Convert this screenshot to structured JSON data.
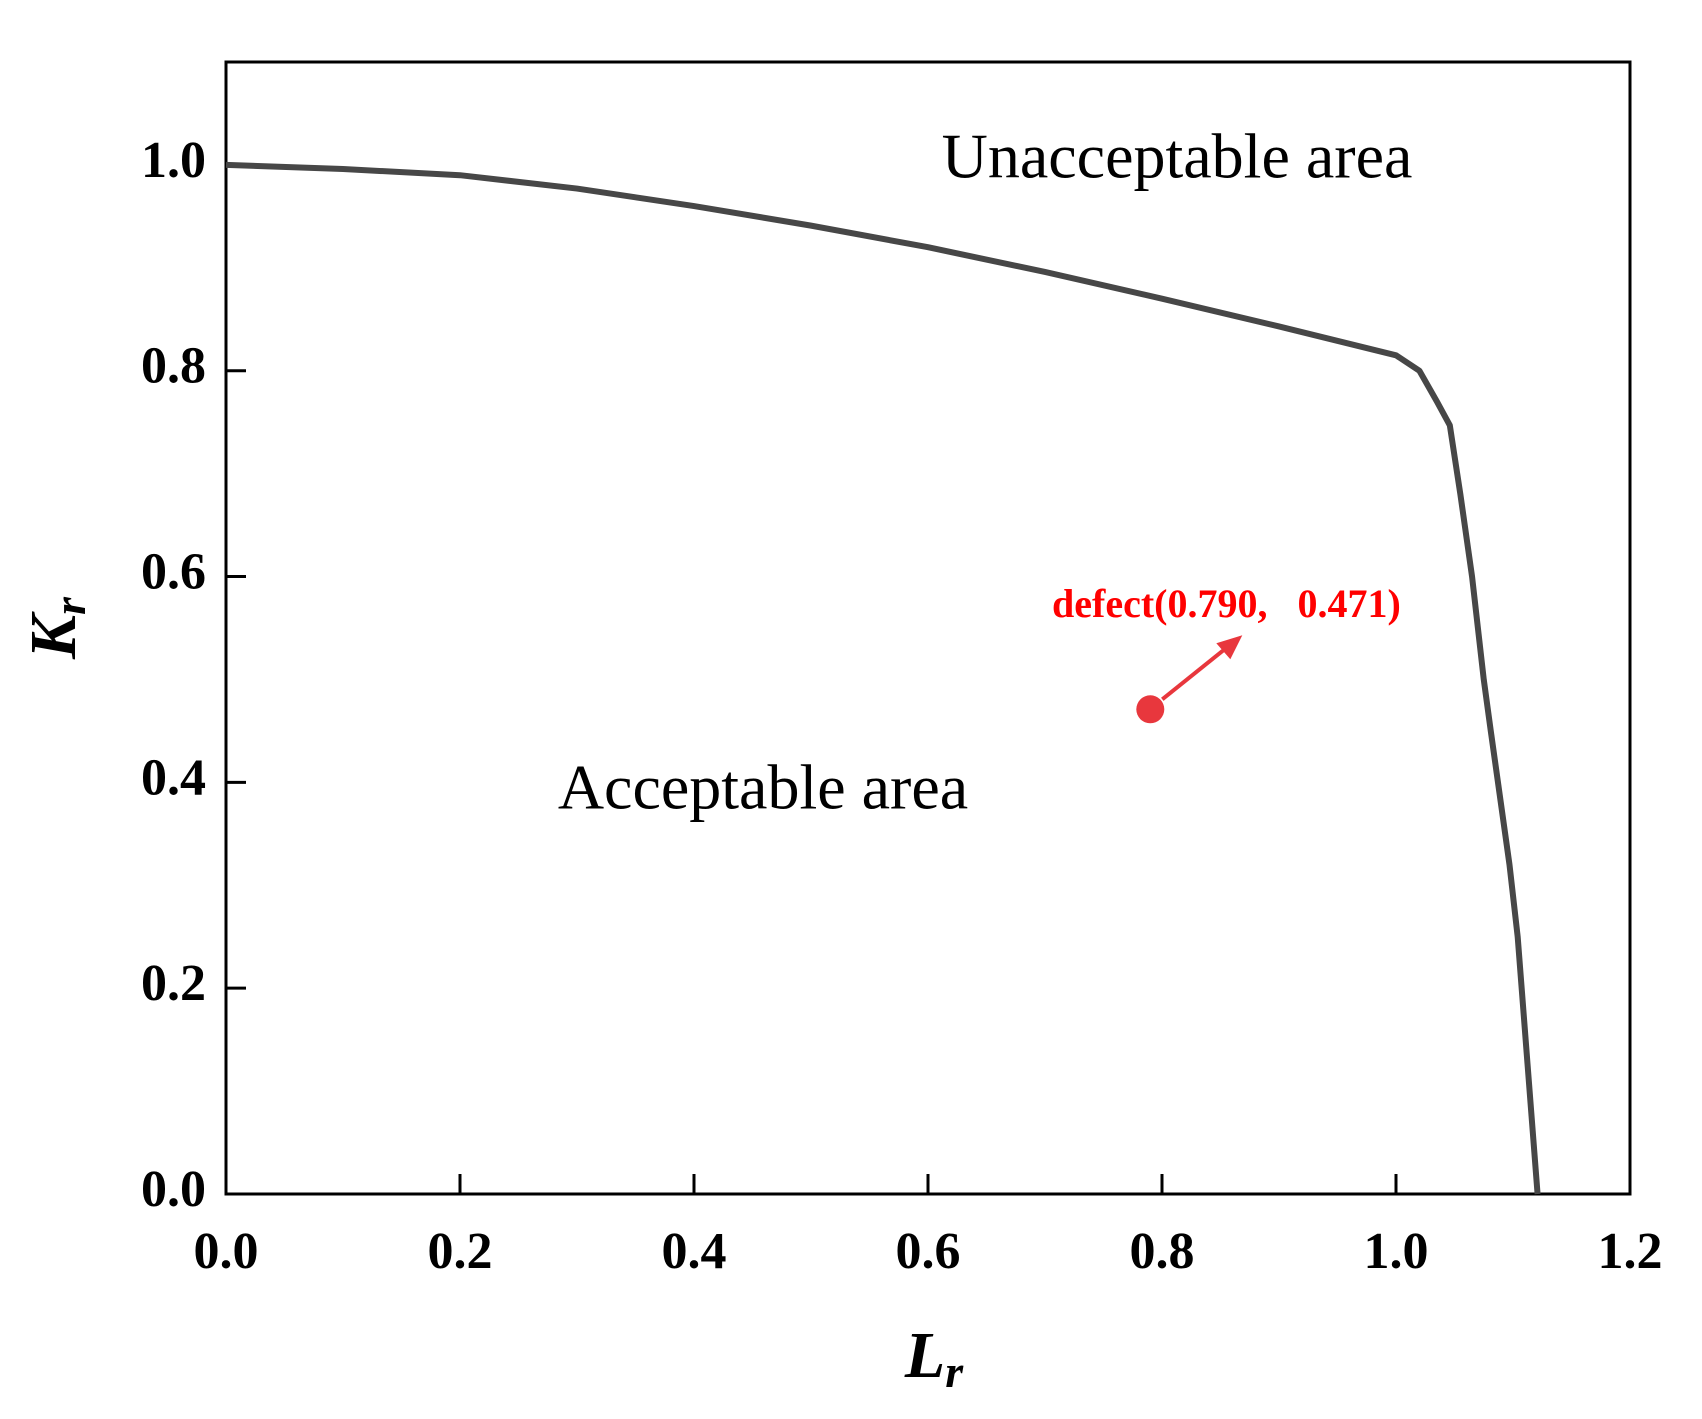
{
  "chart_data": {
    "type": "line",
    "xlabel": {
      "text": "L",
      "sub": "r"
    },
    "ylabel": {
      "text": "K",
      "sub": "r"
    },
    "xlim": [
      0,
      1.2
    ],
    "ylim": [
      0,
      1.1
    ],
    "xticks": [
      {
        "value": 0,
        "label": "0.0"
      },
      0.2,
      0.4,
      0.6,
      0.8,
      {
        "value": 1,
        "label": "1.0"
      },
      1.2
    ],
    "yticks": [
      {
        "value": 0,
        "label": "0.0"
      },
      0.2,
      0.4,
      0.6,
      0.8,
      {
        "value": 1,
        "label": "1.0"
      }
    ],
    "series": [
      {
        "color": "#474747",
        "x": [
          0,
          0.1,
          0.2,
          0.3,
          0.4,
          0.5,
          0.6,
          0.7,
          0.8,
          0.9,
          1.0,
          1.02,
          1.035,
          1.046,
          1.055,
          1.065,
          1.075,
          1.081,
          1.097,
          1.104,
          1.121
        ],
        "values": [
          1.0,
          0.996,
          0.99,
          0.977,
          0.96,
          0.941,
          0.92,
          0.896,
          0.87,
          0.843,
          0.815,
          0.8,
          0.77,
          0.747,
          0.68,
          0.6,
          0.5,
          0.45,
          0.32,
          0.25,
          0
        ]
      }
    ],
    "point": {
      "x": 0.79,
      "y": 0.471,
      "color": "#e8373d",
      "label": "defect(0.790,   0.471)"
    },
    "annotations": [
      "Unacceptable area",
      "Acceptable area"
    ]
  }
}
